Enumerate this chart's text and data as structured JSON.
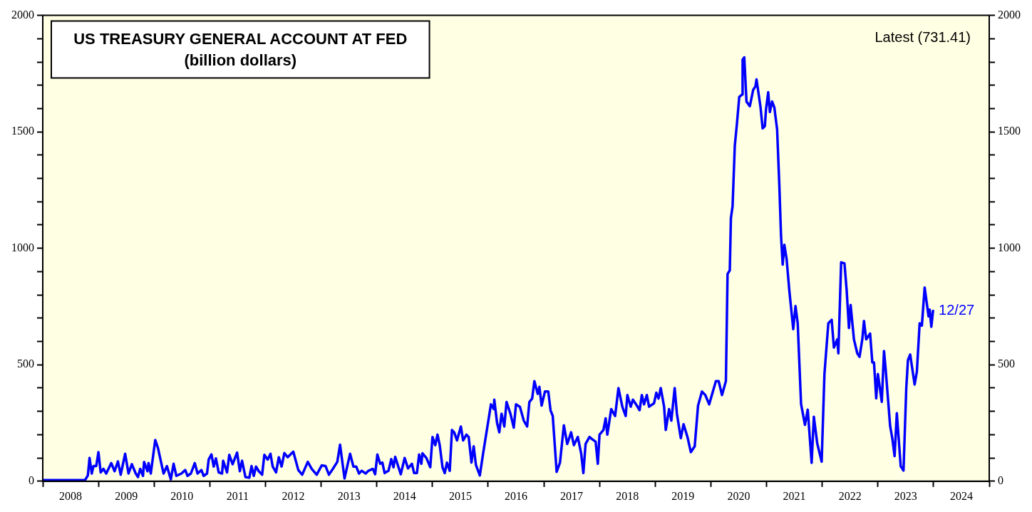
{
  "chart_data": {
    "type": "line",
    "title": "US TREASURY GENERAL ACCOUNT AT FED",
    "subtitle": "(billion dollars)",
    "x": [
      2008.0,
      2008.76,
      2008.81,
      2008.84,
      2008.88,
      2008.91,
      2008.96,
      2009.0,
      2009.04,
      2009.09,
      2009.14,
      2009.23,
      2009.29,
      2009.35,
      2009.4,
      2009.48,
      2009.54,
      2009.6,
      2009.67,
      2009.71,
      2009.75,
      2009.8,
      2009.82,
      2009.88,
      2009.9,
      2009.94,
      2010.02,
      2010.07,
      2010.17,
      2010.23,
      2010.3,
      2010.35,
      2010.4,
      2010.49,
      2010.56,
      2010.6,
      2010.66,
      2010.73,
      2010.78,
      2010.85,
      2010.89,
      2010.95,
      2010.98,
      2011.03,
      2011.07,
      2011.11,
      2011.16,
      2011.22,
      2011.24,
      2011.31,
      2011.35,
      2011.41,
      2011.49,
      2011.54,
      2011.58,
      2011.64,
      2011.71,
      2011.75,
      2011.79,
      2011.83,
      2011.88,
      2011.94,
      2011.98,
      2012.04,
      2012.09,
      2012.13,
      2012.19,
      2012.24,
      2012.29,
      2012.34,
      2012.4,
      2012.5,
      2012.59,
      2012.66,
      2012.76,
      2012.83,
      2012.92,
      2013.01,
      2013.08,
      2013.14,
      2013.21,
      2013.29,
      2013.34,
      2013.42,
      2013.52,
      2013.58,
      2013.63,
      2013.68,
      2013.73,
      2013.8,
      2013.85,
      2013.93,
      2013.97,
      2014.01,
      2014.06,
      2014.1,
      2014.14,
      2014.21,
      2014.26,
      2014.3,
      2014.33,
      2014.39,
      2014.43,
      2014.5,
      2014.56,
      2014.63,
      2014.67,
      2014.72,
      2014.76,
      2014.8,
      2014.82,
      2014.89,
      2014.96,
      2015.0,
      2015.05,
      2015.09,
      2015.13,
      2015.18,
      2015.22,
      2015.26,
      2015.31,
      2015.35,
      2015.39,
      2015.44,
      2015.51,
      2015.55,
      2015.61,
      2015.65,
      2015.7,
      2015.74,
      2015.78,
      2015.85,
      2015.91,
      2015.97,
      2016.01,
      2016.05,
      2016.1,
      2016.11,
      2016.16,
      2016.2,
      2016.24,
      2016.29,
      2016.33,
      2016.4,
      2016.46,
      2016.5,
      2016.57,
      2016.64,
      2016.7,
      2016.74,
      2016.79,
      2016.83,
      2016.89,
      2016.92,
      2016.96,
      2017.02,
      2017.08,
      2017.12,
      2017.16,
      2017.23,
      2017.29,
      2017.36,
      2017.42,
      2017.49,
      2017.54,
      2017.61,
      2017.67,
      2017.71,
      2017.75,
      2017.82,
      2017.87,
      2017.93,
      2017.97,
      2018.0,
      2018.07,
      2018.11,
      2018.14,
      2018.21,
      2018.28,
      2018.34,
      2018.41,
      2018.47,
      2018.5,
      2018.56,
      2018.6,
      2018.67,
      2018.72,
      2018.76,
      2018.8,
      2018.85,
      2018.89,
      2018.98,
      2019.02,
      2019.06,
      2019.1,
      2019.16,
      2019.19,
      2019.25,
      2019.29,
      2019.35,
      2019.39,
      2019.46,
      2019.51,
      2019.58,
      2019.64,
      2019.71,
      2019.77,
      2019.84,
      2019.9,
      2019.97,
      2020.03,
      2020.09,
      2020.14,
      2020.2,
      2020.27,
      2020.3,
      2020.34,
      2020.36,
      2020.39,
      2020.43,
      2020.47,
      2020.51,
      2020.56,
      2020.57,
      2020.6,
      2020.64,
      2020.7,
      2020.76,
      2020.8,
      2020.82,
      2020.89,
      2020.93,
      2020.97,
      2020.99,
      2021.03,
      2021.06,
      2021.1,
      2021.14,
      2021.19,
      2021.23,
      2021.26,
      2021.29,
      2021.32,
      2021.36,
      2021.41,
      2021.48,
      2021.52,
      2021.56,
      2021.62,
      2021.69,
      2021.74,
      2021.81,
      2021.85,
      2021.91,
      2021.99,
      2022.04,
      2022.11,
      2022.17,
      2022.21,
      2022.27,
      2022.29,
      2022.34,
      2022.4,
      2022.44,
      2022.48,
      2022.51,
      2022.57,
      2022.63,
      2022.67,
      2022.72,
      2022.75,
      2022.79,
      2022.86,
      2022.9,
      2022.93,
      2022.97,
      2023.0,
      2023.07,
      2023.11,
      2023.14,
      2023.22,
      2023.26,
      2023.3,
      2023.34,
      2023.41,
      2023.46,
      2023.51,
      2023.54,
      2023.58,
      2023.66,
      2023.7,
      2023.75,
      2023.79,
      2023.84,
      2023.91,
      2023.93,
      2023.96,
      2023.99
    ],
    "series": [
      {
        "color": "#0000ff",
        "values": [
          5,
          5,
          25,
          100,
          33,
          65,
          65,
          125,
          38,
          53,
          33,
          78,
          43,
          85,
          28,
          118,
          33,
          73,
          33,
          18,
          53,
          23,
          83,
          43,
          78,
          33,
          177,
          142,
          33,
          65,
          8,
          75,
          23,
          33,
          48,
          23,
          33,
          78,
          33,
          48,
          23,
          33,
          93,
          115,
          63,
          98,
          38,
          33,
          88,
          38,
          113,
          73,
          123,
          43,
          88,
          18,
          15,
          65,
          23,
          63,
          43,
          28,
          113,
          93,
          118,
          63,
          38,
          103,
          63,
          121,
          103,
          127,
          48,
          28,
          83,
          53,
          28,
          68,
          65,
          28,
          53,
          83,
          157,
          12,
          118,
          63,
          63,
          33,
          45,
          33,
          45,
          53,
          30,
          115,
          75,
          80,
          35,
          45,
          95,
          60,
          105,
          60,
          30,
          100,
          55,
          75,
          35,
          35,
          115,
          75,
          120,
          100,
          60,
          190,
          155,
          200,
          155,
          60,
          35,
          80,
          45,
          220,
          210,
          175,
          235,
          175,
          200,
          190,
          80,
          150,
          70,
          25,
          120,
          210,
          270,
          330,
          310,
          350,
          250,
          210,
          290,
          235,
          340,
          290,
          230,
          330,
          320,
          260,
          235,
          340,
          355,
          430,
          375,
          405,
          325,
          385,
          385,
          305,
          280,
          40,
          80,
          240,
          160,
          210,
          155,
          190,
          120,
          35,
          160,
          190,
          180,
          170,
          75,
          200,
          220,
          270,
          200,
          310,
          280,
          400,
          320,
          280,
          370,
          320,
          350,
          325,
          305,
          370,
          330,
          370,
          320,
          335,
          380,
          355,
          400,
          320,
          220,
          310,
          260,
          400,
          290,
          185,
          245,
          190,
          125,
          150,
          325,
          385,
          370,
          330,
          380,
          430,
          430,
          370,
          430,
          890,
          905,
          1130,
          1180,
          1440,
          1540,
          1650,
          1660,
          1810,
          1820,
          1630,
          1610,
          1680,
          1695,
          1725,
          1610,
          1515,
          1525,
          1595,
          1670,
          1585,
          1630,
          1605,
          1510,
          1270,
          1055,
          930,
          1015,
          955,
          817,
          653,
          752,
          678,
          332,
          242,
          307,
          79,
          277,
          163,
          84,
          460,
          678,
          693,
          574,
          609,
          549,
          940,
          935,
          817,
          658,
          757,
          609,
          549,
          534,
          609,
          688,
          609,
          634,
          510,
          510,
          356,
          460,
          341,
          559,
          480,
          237,
          183,
          108,
          292,
          64,
          46,
          401,
          520,
          544,
          415,
          470,
          678,
          668,
          832,
          708,
          737,
          663,
          731.41
        ]
      }
    ],
    "xlim": [
      2008,
      2025
    ],
    "xticks": [
      {
        "value": 2008,
        "label": null
      },
      {
        "value": 2008.5,
        "label": "2008"
      },
      {
        "value": 2009,
        "label": null
      },
      {
        "value": 2009.5,
        "label": "2009"
      },
      {
        "value": 2010,
        "label": null
      },
      {
        "value": 2010.5,
        "label": "2010"
      },
      {
        "value": 2011,
        "label": null
      },
      {
        "value": 2011.5,
        "label": "2011"
      },
      {
        "value": 2012,
        "label": null
      },
      {
        "value": 2012.5,
        "label": "2012"
      },
      {
        "value": 2013,
        "label": null
      },
      {
        "value": 2013.5,
        "label": "2013"
      },
      {
        "value": 2014,
        "label": null
      },
      {
        "value": 2014.5,
        "label": "2014"
      },
      {
        "value": 2015,
        "label": null
      },
      {
        "value": 2015.5,
        "label": "2015"
      },
      {
        "value": 2016,
        "label": null
      },
      {
        "value": 2016.5,
        "label": "2016"
      },
      {
        "value": 2017,
        "label": null
      },
      {
        "value": 2017.5,
        "label": "2017"
      },
      {
        "value": 2018,
        "label": null
      },
      {
        "value": 2018.5,
        "label": "2018"
      },
      {
        "value": 2019,
        "label": null
      },
      {
        "value": 2019.5,
        "label": "2019"
      },
      {
        "value": 2020,
        "label": null
      },
      {
        "value": 2020.5,
        "label": "2020"
      },
      {
        "value": 2021,
        "label": null
      },
      {
        "value": 2021.5,
        "label": "2021"
      },
      {
        "value": 2022,
        "label": null
      },
      {
        "value": 2022.5,
        "label": "2022"
      },
      {
        "value": 2023,
        "label": null
      },
      {
        "value": 2023.5,
        "label": "2023"
      },
      {
        "value": 2024,
        "label": null
      },
      {
        "value": 2024.5,
        "label": "2024"
      },
      {
        "value": 2025,
        "label": null
      }
    ],
    "ylim": [
      0,
      2000
    ],
    "yticks": [
      0,
      {
        "value": 100,
        "label": null
      },
      {
        "value": 200,
        "label": null
      },
      {
        "value": 300,
        "label": null
      },
      {
        "value": 400,
        "label": null
      },
      500,
      {
        "value": 600,
        "label": null
      },
      {
        "value": 700,
        "label": null
      },
      {
        "value": 800,
        "label": null
      },
      {
        "value": 900,
        "label": null
      },
      1000,
      {
        "value": 1100,
        "label": null
      },
      {
        "value": 1200,
        "label": null
      },
      {
        "value": 1300,
        "label": null
      },
      {
        "value": 1400,
        "label": null
      },
      1500,
      {
        "value": 1600,
        "label": null
      },
      {
        "value": 1700,
        "label": null
      },
      {
        "value": 1800,
        "label": null
      },
      {
        "value": 1900,
        "label": null
      },
      2000
    ],
    "y2lim": [
      0,
      2000
    ],
    "y2ticks": [
      0,
      {
        "value": 100,
        "label": null
      },
      {
        "value": 200,
        "label": null
      },
      {
        "value": 300,
        "label": null
      },
      {
        "value": 400,
        "label": null
      },
      500,
      {
        "value": 600,
        "label": null
      },
      {
        "value": 700,
        "label": null
      },
      {
        "value": 800,
        "label": null
      },
      {
        "value": 900,
        "label": null
      },
      1000,
      {
        "value": 1100,
        "label": null
      },
      {
        "value": 1200,
        "label": null
      },
      {
        "value": 1300,
        "label": null
      },
      {
        "value": 1400,
        "label": null
      },
      1500,
      {
        "value": 1600,
        "label": null
      },
      {
        "value": 1700,
        "label": null
      },
      {
        "value": 1800,
        "label": null
      },
      {
        "value": 1900,
        "label": null
      },
      2000
    ],
    "annotations": [
      "Latest (731.41)",
      {
        "text": "12/27",
        "x": 2023.99,
        "y": 731.41
      }
    ]
  }
}
